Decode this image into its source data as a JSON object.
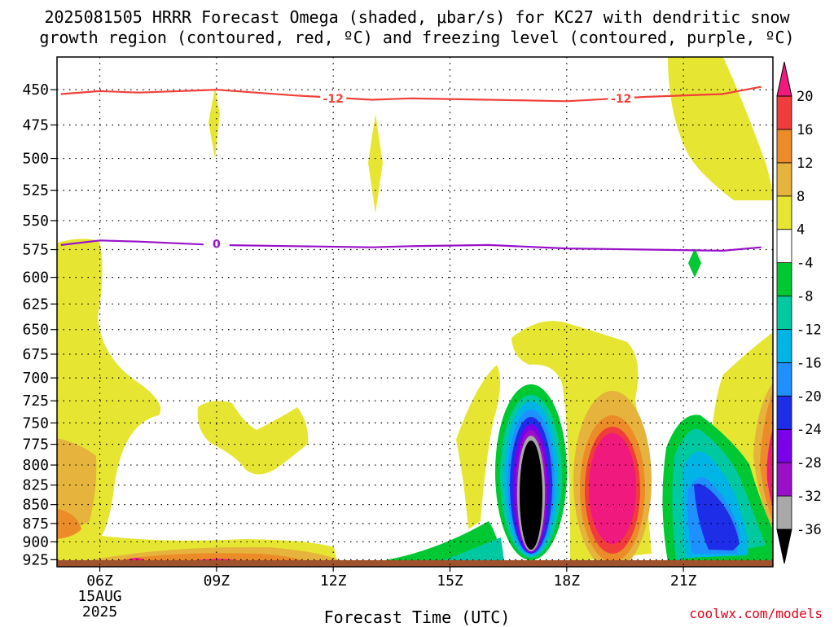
{
  "title_line1": "2025081505 HRRR Forecast Omega (shaded, μbar/s) for KC27 with dendritic snow",
  "title_line2": "growth region (contoured, red, ºC) and freezing level (contoured, purple, ºC)",
  "xlabel": "Forecast Time (UTC)",
  "credit": "coolwx.com/models",
  "colors": {
    "dgz": "#f0403a",
    "freezing": "#9a10c8",
    "ground": "#a0522d",
    "colorbar": [
      "#000000",
      "#a8a8a8",
      "#9a10c8",
      "#7a00ea",
      "#1e2ee8",
      "#1e90ff",
      "#00b4e6",
      "#00c8a0",
      "#00c832",
      "#ffffff",
      "#e6e632",
      "#e6b43c",
      "#ec8c28",
      "#f03c3c",
      "#f0197d"
    ]
  },
  "chart_data": {
    "type": "heatmap",
    "variable": "Omega",
    "units": "μbar/s",
    "x_ticks": [
      "06Z",
      "09Z",
      "12Z",
      "15Z",
      "18Z",
      "21Z"
    ],
    "x_date": "15AUG",
    "x_year": "2025",
    "y_ticks": [
      450,
      475,
      500,
      525,
      550,
      575,
      600,
      625,
      650,
      675,
      700,
      725,
      750,
      775,
      800,
      825,
      850,
      875,
      900,
      925
    ],
    "y_axis": "pressure (hPa), log scale, inverted",
    "ylim": [
      428,
      935
    ],
    "colorbar_ticks": [
      20,
      16,
      12,
      8,
      4,
      -4,
      -8,
      -12,
      -16,
      -20,
      -24,
      -28,
      -32,
      -36
    ],
    "contours": [
      {
        "label": "-12",
        "values_hpa": [
          453,
          451,
          452,
          450,
          454,
          457,
          456,
          457,
          458,
          455,
          453,
          448
        ]
      },
      {
        "label": "0",
        "values_hpa": [
          571,
          567,
          568,
          571,
          572,
          573,
          572,
          571,
          574,
          575,
          576,
          573
        ]
      }
    ],
    "contour_times": [
      "05Z",
      "06Z",
      "07Z",
      "09Z",
      "11Z",
      "13Z",
      "14Z",
      "16Z",
      "18Z",
      "20Z",
      "22Z",
      "23Z"
    ],
    "features": [
      {
        "time": "17Z",
        "levels_hpa": [
          735,
          910
        ],
        "min": -36
      },
      {
        "time": "19Z",
        "levels_hpa": [
          750,
          905
        ],
        "max": 20
      },
      {
        "time": "21.5Z",
        "levels_hpa": [
          760,
          920
        ],
        "min": -24
      }
    ]
  }
}
